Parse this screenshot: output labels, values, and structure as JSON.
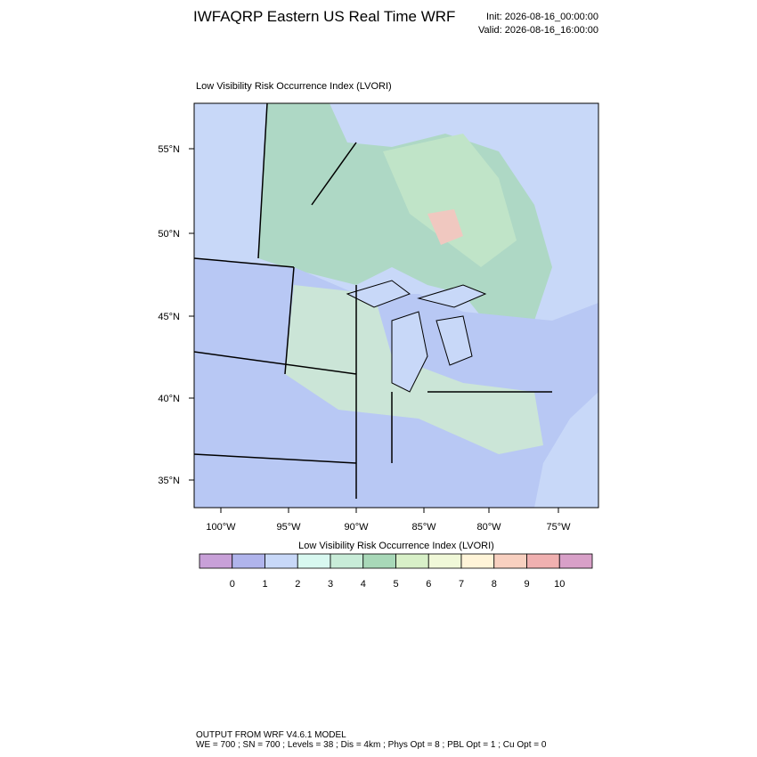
{
  "header": {
    "title": "IWFAQRP Eastern US Real Time WRF",
    "init": "Init: 2026-08-16_00:00:00",
    "valid": "Valid: 2026-08-16_16:00:00"
  },
  "map": {
    "label": "Low Visibility Risk Occurrence Index   (LVORI)",
    "lat_labels": [
      "55°N",
      "50°N",
      "45°N",
      "40°N",
      "35°N"
    ],
    "lon_labels": [
      "100°W",
      "95°W",
      "90°W",
      "85°W",
      "80°W",
      "75°W"
    ]
  },
  "colorbar": {
    "title": "Low Visibility Risk Occurrence Index  (LVORI)",
    "labels": [
      0,
      1,
      2,
      3,
      4,
      5,
      6,
      7,
      8,
      9,
      10
    ],
    "colors": [
      "#c8a0d8",
      "#b0b4ec",
      "#c8d8f8",
      "#d8f8f0",
      "#c8ecd8",
      "#a8d8b8",
      "#d8f0c8",
      "#f0f8d8",
      "#fff4d8",
      "#f8d0c0",
      "#f0b0b0",
      "#d8a0c8"
    ]
  },
  "footer": {
    "lines": [
      "OUTPUT FROM WRF V4.6.1 MODEL",
      "WE = 700 ; SN = 700 ; Levels = 38 ; Dis = 4km ; Phys Opt = 8 ; PBL Opt = 1 ; Cu Opt = 0"
    ]
  }
}
